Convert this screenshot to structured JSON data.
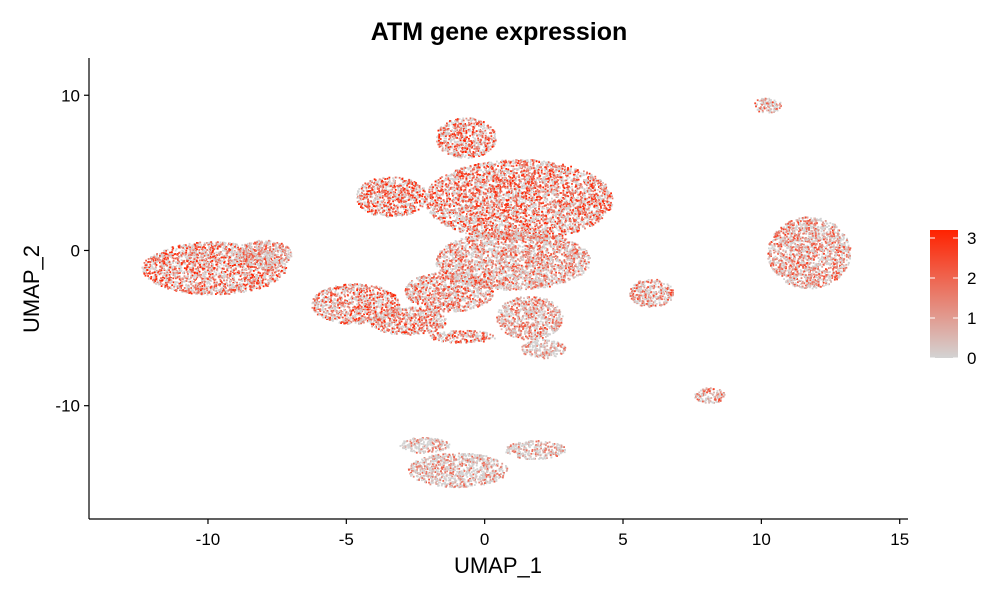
{
  "chart_data": {
    "type": "scatter",
    "title": "ATM gene expression",
    "xlabel": "UMAP_1",
    "ylabel": "UMAP_2",
    "xlim": [
      -14.3,
      15.3
    ],
    "ylim": [
      -17.3,
      12.4
    ],
    "x_ticks": [
      -10,
      -5,
      0,
      5,
      10,
      15
    ],
    "y_ticks": [
      -10,
      0,
      10
    ],
    "grid": false,
    "legend": {
      "placement": "right",
      "ticks": [
        0,
        1,
        2,
        3
      ],
      "min": 0,
      "max": 3.2,
      "low_color": "#d3d3d3",
      "high_color": "#ff2200"
    },
    "clusters": [
      {
        "cx": -9.8,
        "cy": -1.1,
        "rx": 2.6,
        "ry": 1.7,
        "level": 0.55
      },
      {
        "cx": -8.0,
        "cy": -0.2,
        "rx": 1.0,
        "ry": 0.9,
        "level": 0.3
      },
      {
        "cx": -4.7,
        "cy": -3.4,
        "rx": 1.6,
        "ry": 1.3,
        "level": 0.5
      },
      {
        "cx": -2.8,
        "cy": -4.5,
        "rx": 1.4,
        "ry": 0.9,
        "level": 0.45
      },
      {
        "cx": -0.7,
        "cy": 7.3,
        "rx": 1.1,
        "ry": 1.3,
        "level": 0.55
      },
      {
        "cx": -3.4,
        "cy": 3.5,
        "rx": 1.3,
        "ry": 1.3,
        "level": 0.6
      },
      {
        "cx": 1.2,
        "cy": 3.3,
        "rx": 3.4,
        "ry": 2.6,
        "level": 0.55
      },
      {
        "cx": 1.0,
        "cy": -0.6,
        "rx": 2.8,
        "ry": 1.9,
        "level": 0.35
      },
      {
        "cx": -1.3,
        "cy": -2.6,
        "rx": 1.6,
        "ry": 1.3,
        "level": 0.4
      },
      {
        "cx": 1.6,
        "cy": -4.3,
        "rx": 1.2,
        "ry": 1.4,
        "level": 0.3
      },
      {
        "cx": 2.1,
        "cy": -6.3,
        "rx": 0.8,
        "ry": 0.6,
        "level": 0.1
      },
      {
        "cx": -0.8,
        "cy": -5.5,
        "rx": 1.2,
        "ry": 0.4,
        "level": 0.5
      },
      {
        "cx": 11.7,
        "cy": -0.1,
        "rx": 1.5,
        "ry": 2.3,
        "level": 0.35
      },
      {
        "cx": 10.2,
        "cy": 9.4,
        "rx": 0.5,
        "ry": 0.5,
        "level": 0.3
      },
      {
        "cx": 8.1,
        "cy": -9.3,
        "rx": 0.55,
        "ry": 0.5,
        "level": 0.3
      },
      {
        "cx": 6.0,
        "cy": -2.7,
        "rx": 0.8,
        "ry": 0.9,
        "level": 0.35
      },
      {
        "cx": -1.0,
        "cy": -14.1,
        "rx": 1.8,
        "ry": 1.1,
        "level": 0.15
      },
      {
        "cx": 1.8,
        "cy": -12.8,
        "rx": 1.1,
        "ry": 0.6,
        "level": 0.1
      },
      {
        "cx": -2.2,
        "cy": -12.5,
        "rx": 0.9,
        "ry": 0.5,
        "level": 0.1
      }
    ]
  }
}
